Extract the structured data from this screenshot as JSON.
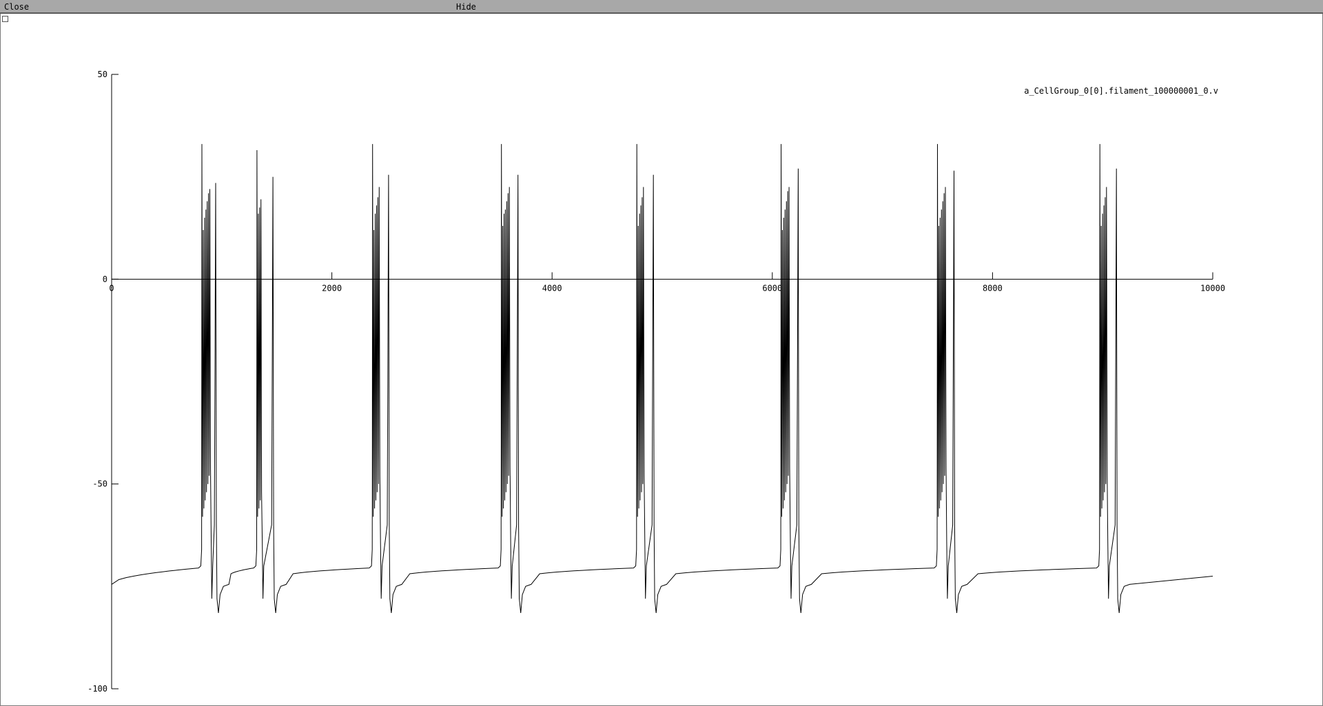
{
  "window": {
    "close_label": "Close",
    "hide_label": "Hide"
  },
  "chart_data": {
    "type": "line",
    "legend": "a_CellGroup_0[0].filament_100000001_0.v",
    "legend_placement": "top-right",
    "grid": false,
    "xlim": [
      0,
      10000
    ],
    "ylim": [
      -100,
      50
    ],
    "x_ticks": [
      0,
      2000,
      4000,
      6000,
      8000,
      10000
    ],
    "y_ticks": [
      50,
      0,
      -50,
      -100
    ],
    "x_tick_labels": [
      "0",
      "2000",
      "4000",
      "6000",
      "8000",
      "10000"
    ],
    "y_tick_labels": [
      "50",
      "0",
      "-50",
      "-100"
    ],
    "line_color": "#000000",
    "resting_start": -74.5,
    "resting_end": -72.5,
    "bursts": [
      {
        "start": 820,
        "spike_peaks": [
          33,
          12,
          15,
          17,
          19,
          21,
          22
        ],
        "last_spike": {
          "t": 945,
          "peak": 23.5
        },
        "trough": -81.5
      },
      {
        "start": 1320,
        "spike_peaks": [
          31.5,
          16,
          17.5,
          19.5
        ],
        "last_spike": {
          "t": 1465,
          "peak": 25
        },
        "trough": -81.5
      },
      {
        "start": 2370,
        "spike_peaks": [
          33,
          12,
          16,
          18,
          20,
          22.5
        ],
        "last_spike": {
          "t": 2515,
          "peak": 25.5
        },
        "trough": -81.5
      },
      {
        "start": 3540,
        "spike_peaks": [
          33,
          13,
          16,
          17,
          19,
          21,
          22.5
        ],
        "last_spike": {
          "t": 3690,
          "peak": 25.5
        },
        "trough": -81.5
      },
      {
        "start": 4770,
        "spike_peaks": [
          33,
          13,
          16,
          18,
          20,
          22.5
        ],
        "last_spike": {
          "t": 4920,
          "peak": 25.5
        },
        "trough": -81.5
      },
      {
        "start": 6080,
        "spike_peaks": [
          33,
          12,
          15,
          17,
          19,
          21.5,
          22.5
        ],
        "last_spike": {
          "t": 6235,
          "peak": 27
        },
        "trough": -81.5
      },
      {
        "start": 7500,
        "spike_peaks": [
          33,
          13,
          15,
          17,
          19,
          21,
          22.5
        ],
        "last_spike": {
          "t": 7650,
          "peak": 26.5
        },
        "trough": -81.5
      },
      {
        "start": 8975,
        "spike_peaks": [
          33,
          13,
          16,
          18,
          20,
          22.5
        ],
        "last_spike": {
          "t": 9125,
          "peak": 27
        },
        "trough": -81.5
      }
    ]
  }
}
